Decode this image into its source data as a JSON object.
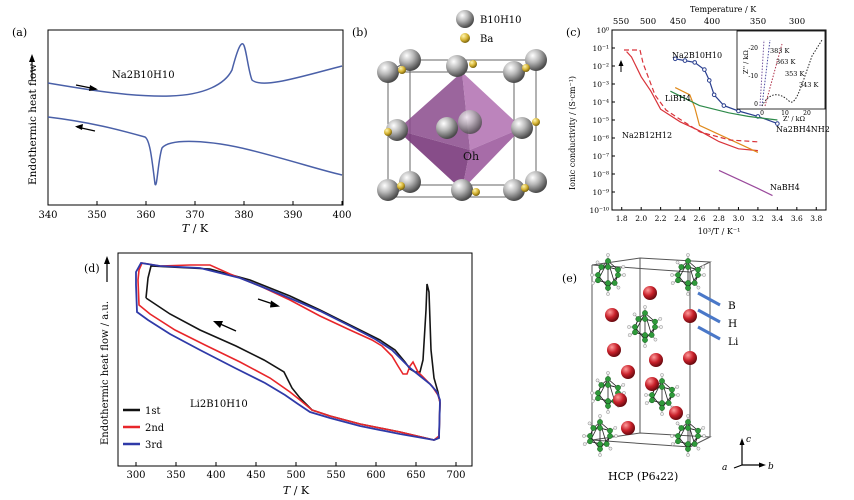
{
  "panel_labels": {
    "a": "(a)",
    "b": "(b)",
    "c": "(c)",
    "d": "(d)",
    "e": "(e)"
  },
  "panel_a": {
    "ylabel": "Endothermic heat flow",
    "xlabel_sym": "T",
    "xlabel_unit": " / K",
    "compound": "Na2B10H10",
    "xticks": [
      "340",
      "350",
      "360",
      "370",
      "380",
      "390",
      "400"
    ]
  },
  "panel_b": {
    "legend_b10": "B10H10",
    "legend_ba": "Ba",
    "center_label": "Oh"
  },
  "panel_c": {
    "top_axis_title": "Temperature / K",
    "top_ticks": [
      "550",
      "500",
      "450",
      "400",
      "350",
      "300"
    ],
    "ylabel": "Ionic conductivity / (S·cm⁻¹)",
    "xlabel": "10³/T / K⁻¹",
    "yticks": [
      "10⁰",
      "10⁻¹",
      "10⁻²",
      "10⁻³",
      "10⁻⁴",
      "10⁻⁵",
      "10⁻⁶",
      "10⁻⁷",
      "10⁻⁸",
      "10⁻⁹",
      "10⁻¹⁰"
    ],
    "xticks": [
      "1.8",
      "2.0",
      "2.2",
      "2.4",
      "2.6",
      "2.8",
      "3.0",
      "3.2",
      "3.4",
      "3.6",
      "3.8"
    ],
    "labels": {
      "na2b10h10": "Na2B10H10",
      "libh4": "LiBH4",
      "na2b12h12": "Na2B12H12",
      "na2bh4nh2": "Na2BH4NH2",
      "nabh4": "NaBH4"
    },
    "inset": {
      "ylabel": "Z'' / kΩ",
      "xlabel": "Z' / kΩ",
      "temps": [
        "383 K",
        "363 K",
        "353 K",
        "343 K"
      ],
      "yticks": [
        "-20",
        "-10",
        "0"
      ],
      "xticks": [
        "0",
        "10",
        "20"
      ]
    },
    "chart_data": {
      "type": "line",
      "xlabel": "10³/T / K⁻¹",
      "ylabel": "Ionic conductivity / (S·cm⁻¹)",
      "xlim": [
        1.7,
        3.9
      ],
      "ylim_log10": [
        -10,
        0
      ],
      "series": [
        {
          "name": "Na2B12H12",
          "x": [
            1.85,
            1.9,
            2.0,
            2.1,
            2.2,
            2.4,
            2.6,
            2.8,
            3.0,
            3.2
          ],
          "y_log10": [
            -1.2,
            -1.5,
            -2.6,
            -3.4,
            -4.4,
            -5.1,
            -5.6,
            -6.2,
            -6.6,
            -6.7
          ]
        },
        {
          "name": "Na2B10H10",
          "x": [
            2.35,
            2.45,
            2.55,
            2.65,
            2.7,
            2.75,
            2.85,
            3.0,
            3.2,
            3.4
          ],
          "y_log10": [
            -1.6,
            -1.7,
            -1.8,
            -2.2,
            -2.8,
            -3.6,
            -4.2,
            -4.5,
            -4.8,
            -5.2
          ]
        },
        {
          "name": "LiBH4",
          "x": [
            2.35,
            2.5,
            2.55,
            2.6,
            2.8,
            3.0,
            3.2
          ],
          "y_log10": [
            -3.2,
            -3.6,
            -4.3,
            -5.3,
            -5.8,
            -6.3,
            -6.8
          ]
        },
        {
          "name": "Na2BH4NH2",
          "x": [
            2.3,
            2.6,
            2.9,
            3.1,
            3.4
          ],
          "y_log10": [
            -3.4,
            -4.2,
            -4.6,
            -4.8,
            -5.0
          ]
        },
        {
          "name": "NaBH4",
          "x": [
            2.8,
            3.0,
            3.2,
            3.35
          ],
          "y_log10": [
            -7.8,
            -8.3,
            -8.8,
            -9.2
          ]
        }
      ]
    }
  },
  "panel_d": {
    "ylabel": "Endothermic heat flow / a.u.",
    "xlabel_sym": "T",
    "xlabel_unit": " / K",
    "compound": "Li2B10H10",
    "xticks": [
      "300",
      "350",
      "400",
      "450",
      "500",
      "550",
      "600",
      "650",
      "700"
    ],
    "legend": [
      {
        "label": "1st",
        "color": "#111111"
      },
      {
        "label": "2nd",
        "color": "#e8262a"
      },
      {
        "label": "3rd",
        "color": "#2f3aa8"
      }
    ]
  },
  "panel_e": {
    "labels": [
      "B",
      "H",
      "Li"
    ],
    "caption": "HCP (P6₄22)",
    "axes": {
      "a": "a",
      "b": "b",
      "c": "c"
    }
  }
}
